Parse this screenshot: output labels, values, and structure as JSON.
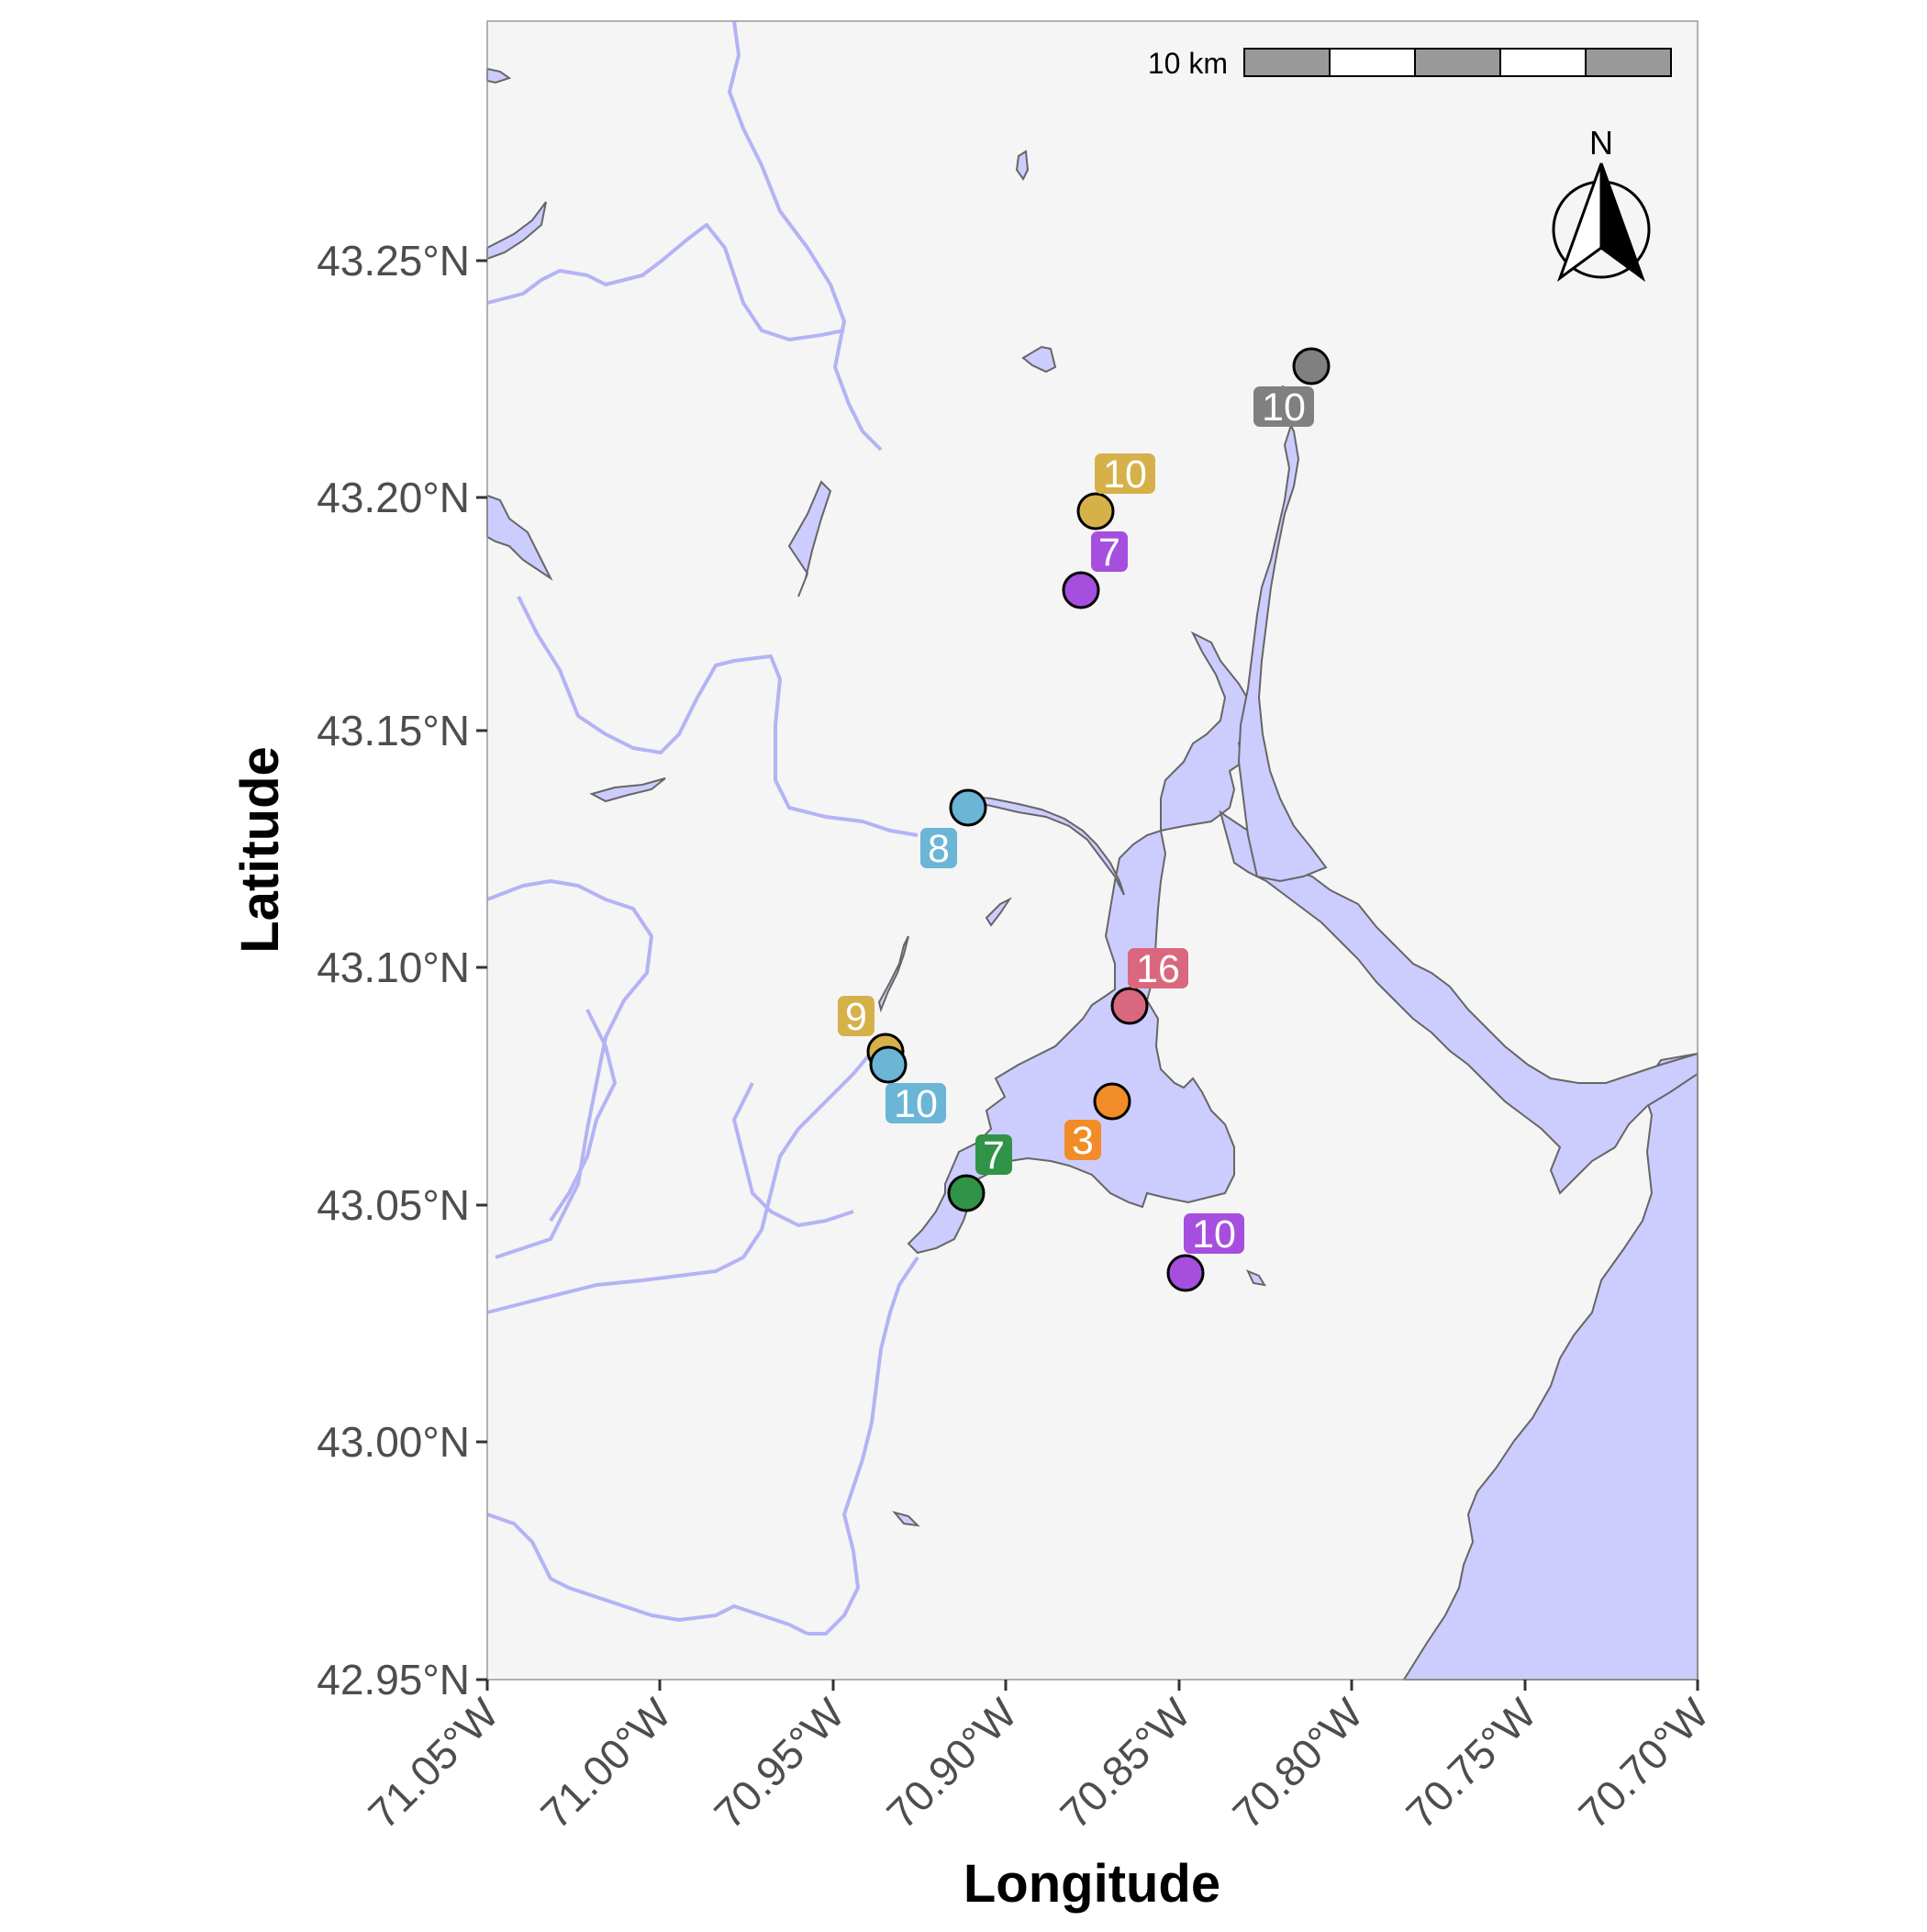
{
  "map": {
    "xlabel": "Longitude",
    "ylabel": "Latitude",
    "x_ticks": [
      "71.05°W",
      "71.00°W",
      "70.95°W",
      "70.90°W",
      "70.85°W",
      "70.80°W",
      "70.75°W",
      "70.70°W"
    ],
    "y_ticks": [
      "43.25°N",
      "43.20°N",
      "43.15°N",
      "43.10°N",
      "43.05°N",
      "43.00°N",
      "42.95°N"
    ],
    "scale_bar_label": "10 km",
    "north_label": "N",
    "land_color": "#f5f5f5",
    "water_color": "#ccccff",
    "river_color": "#b3b3f5",
    "coast_outline_color": "#666666"
  },
  "sites": [
    {
      "label": "10",
      "color": "#808080"
    },
    {
      "label": "10",
      "color": "#d6b14a"
    },
    {
      "label": "7",
      "color": "#a64fde"
    },
    {
      "label": "8",
      "color": "#6bb5d6"
    },
    {
      "label": "16",
      "color": "#d9687f"
    },
    {
      "label": "9",
      "color": "#d6b14a"
    },
    {
      "label": "10",
      "color": "#6bb5d6"
    },
    {
      "label": "3",
      "color": "#f28c28"
    },
    {
      "label": "7",
      "color": "#2f9447"
    },
    {
      "label": "10",
      "color": "#a64fde"
    }
  ]
}
